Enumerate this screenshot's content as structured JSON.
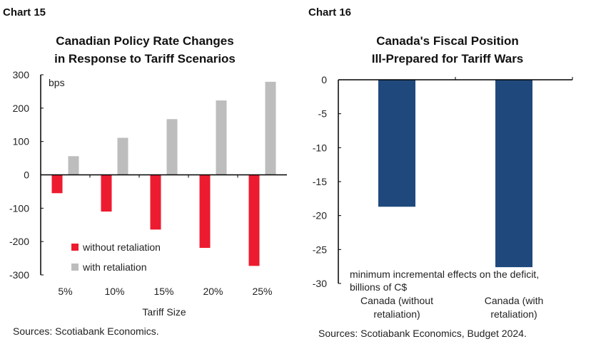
{
  "chart_data": [
    {
      "label": "Chart 15",
      "type": "bar",
      "title": [
        "Canadian Policy Rate Changes",
        "in Response to Tariff Scenarios"
      ],
      "unit_label": "bps",
      "xlabel": "Tariff Size",
      "categories": [
        "5%",
        "10%",
        "15%",
        "20%",
        "25%"
      ],
      "series": [
        {
          "name": "without retaliation",
          "color": "#ED1B2F",
          "values": [
            -55,
            -110,
            -164,
            -219,
            -273
          ]
        },
        {
          "name": "with retaliation",
          "color": "#BDBDBD",
          "values": [
            56,
            111,
            167,
            223,
            279
          ]
        }
      ],
      "ylim": [
        -300,
        300
      ],
      "yticks": [
        300,
        200,
        100,
        0,
        -100,
        -200,
        -300
      ],
      "legend": "bottom-left",
      "grid": false,
      "source": "Sources: Scotiabank Economics."
    },
    {
      "label": "Chart 16",
      "type": "bar",
      "title": [
        "Canada's Fiscal Position",
        "Ill-Prepared for Tariff Wars"
      ],
      "annotation": [
        "minimum incremental effects on the deficit,",
        "billions of C$"
      ],
      "categories": [
        [
          "Canada (without",
          "retaliation)"
        ],
        [
          "Canada (with",
          "retaliation)"
        ]
      ],
      "values": [
        -18.7,
        -27.6
      ],
      "color": "#1F497D",
      "ylim": [
        -30,
        0
      ],
      "yticks": [
        0,
        -5,
        -10,
        -15,
        -20,
        -25,
        -30
      ],
      "grid": false,
      "source": "Sources: Scotiabank Economics, Budget 2024."
    }
  ]
}
